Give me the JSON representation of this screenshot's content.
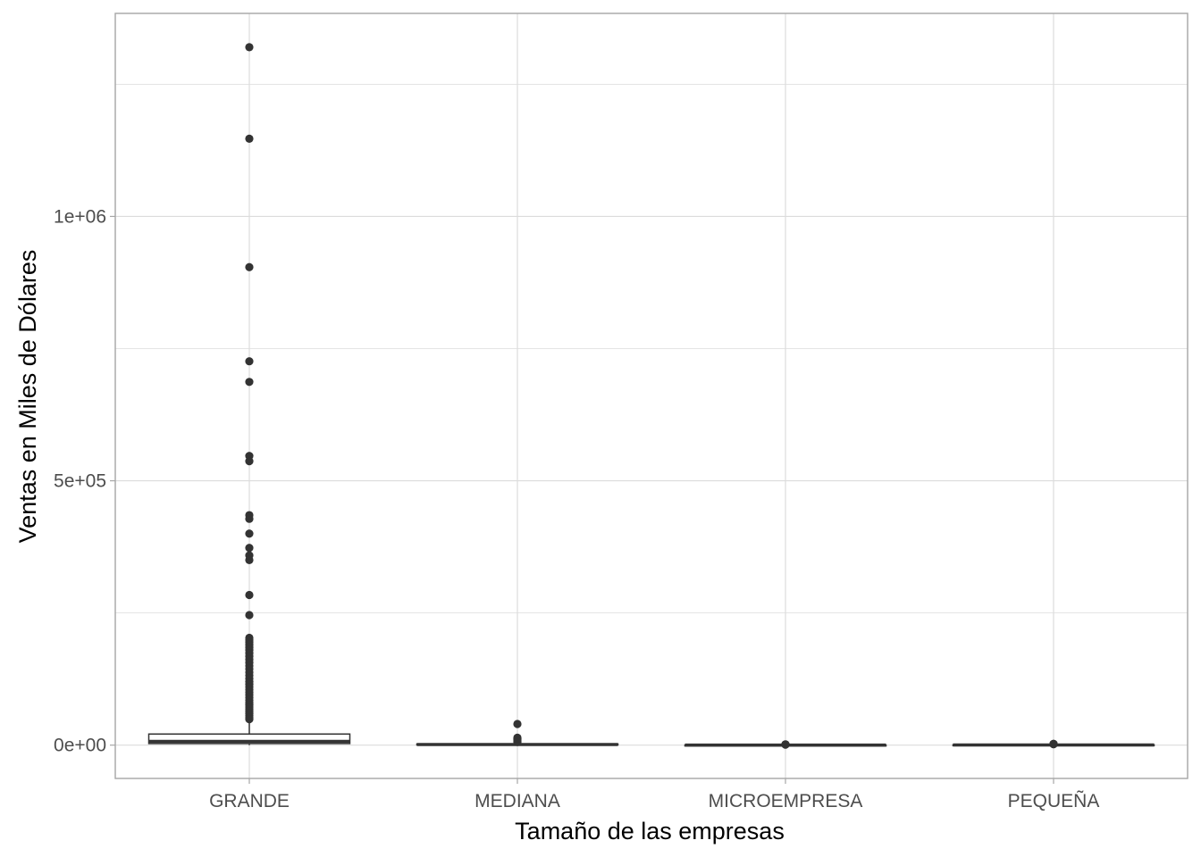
{
  "chart_data": {
    "type": "boxplot",
    "title": "",
    "xlabel": "Tamaño de las empresas",
    "ylabel": "Ventas en Miles de Dólares",
    "ylim": [
      -63000,
      1384000
    ],
    "y_ticks": [
      {
        "value": 0,
        "label": "0e+00"
      },
      {
        "value": 500000,
        "label": "5e+05"
      },
      {
        "value": 1000000,
        "label": "1e+06"
      }
    ],
    "y_minor_ticks": [
      250000,
      750000,
      1250000
    ],
    "grid": true,
    "colors": {
      "box_fill": "#ffffff",
      "box_line": "#333333",
      "points": "#333333",
      "grid": "#dcdcdc",
      "border": "#a6a6a6"
    },
    "categories": [
      "GRANDE",
      "MEDIANA",
      "MICROEMPRESA",
      "PEQUEÑA"
    ],
    "boxes": [
      {
        "category": "GRANDE",
        "whisker_low": 0,
        "q1": 3000,
        "median": 7000,
        "q3": 21000,
        "whisker_high": 47000,
        "outliers": [
          1320000,
          1147000,
          904000,
          726000,
          687000,
          547000,
          537000,
          435000,
          428000,
          400000,
          373000,
          359000,
          350000,
          284000,
          246000,
          203000,
          199000,
          195000,
          190000,
          185000,
          180000,
          174000,
          168000,
          162000,
          156000,
          150000,
          144000,
          138000,
          132000,
          126000,
          120000,
          115000,
          110000,
          105000,
          100000,
          95000,
          90000,
          85000,
          80000,
          76000,
          72000,
          68000,
          64000,
          60000,
          56000,
          52000,
          49000
        ]
      },
      {
        "category": "MEDIANA",
        "whisker_low": 0,
        "q1": 600,
        "median": 1200,
        "q3": 2200,
        "whisker_high": 4500,
        "outliers": [
          40000,
          14000,
          12000,
          10000,
          8000,
          6000
        ]
      },
      {
        "category": "MICROEMPRESA",
        "whisker_low": 0,
        "q1": 20,
        "median": 60,
        "q3": 150,
        "whisker_high": 300,
        "outliers": [
          1500,
          1200,
          900
        ]
      },
      {
        "category": "PEQUEÑA",
        "whisker_low": 0,
        "q1": 150,
        "median": 350,
        "q3": 650,
        "whisker_high": 1300,
        "outliers": [
          2500,
          2200,
          1900,
          1700
        ]
      }
    ]
  }
}
